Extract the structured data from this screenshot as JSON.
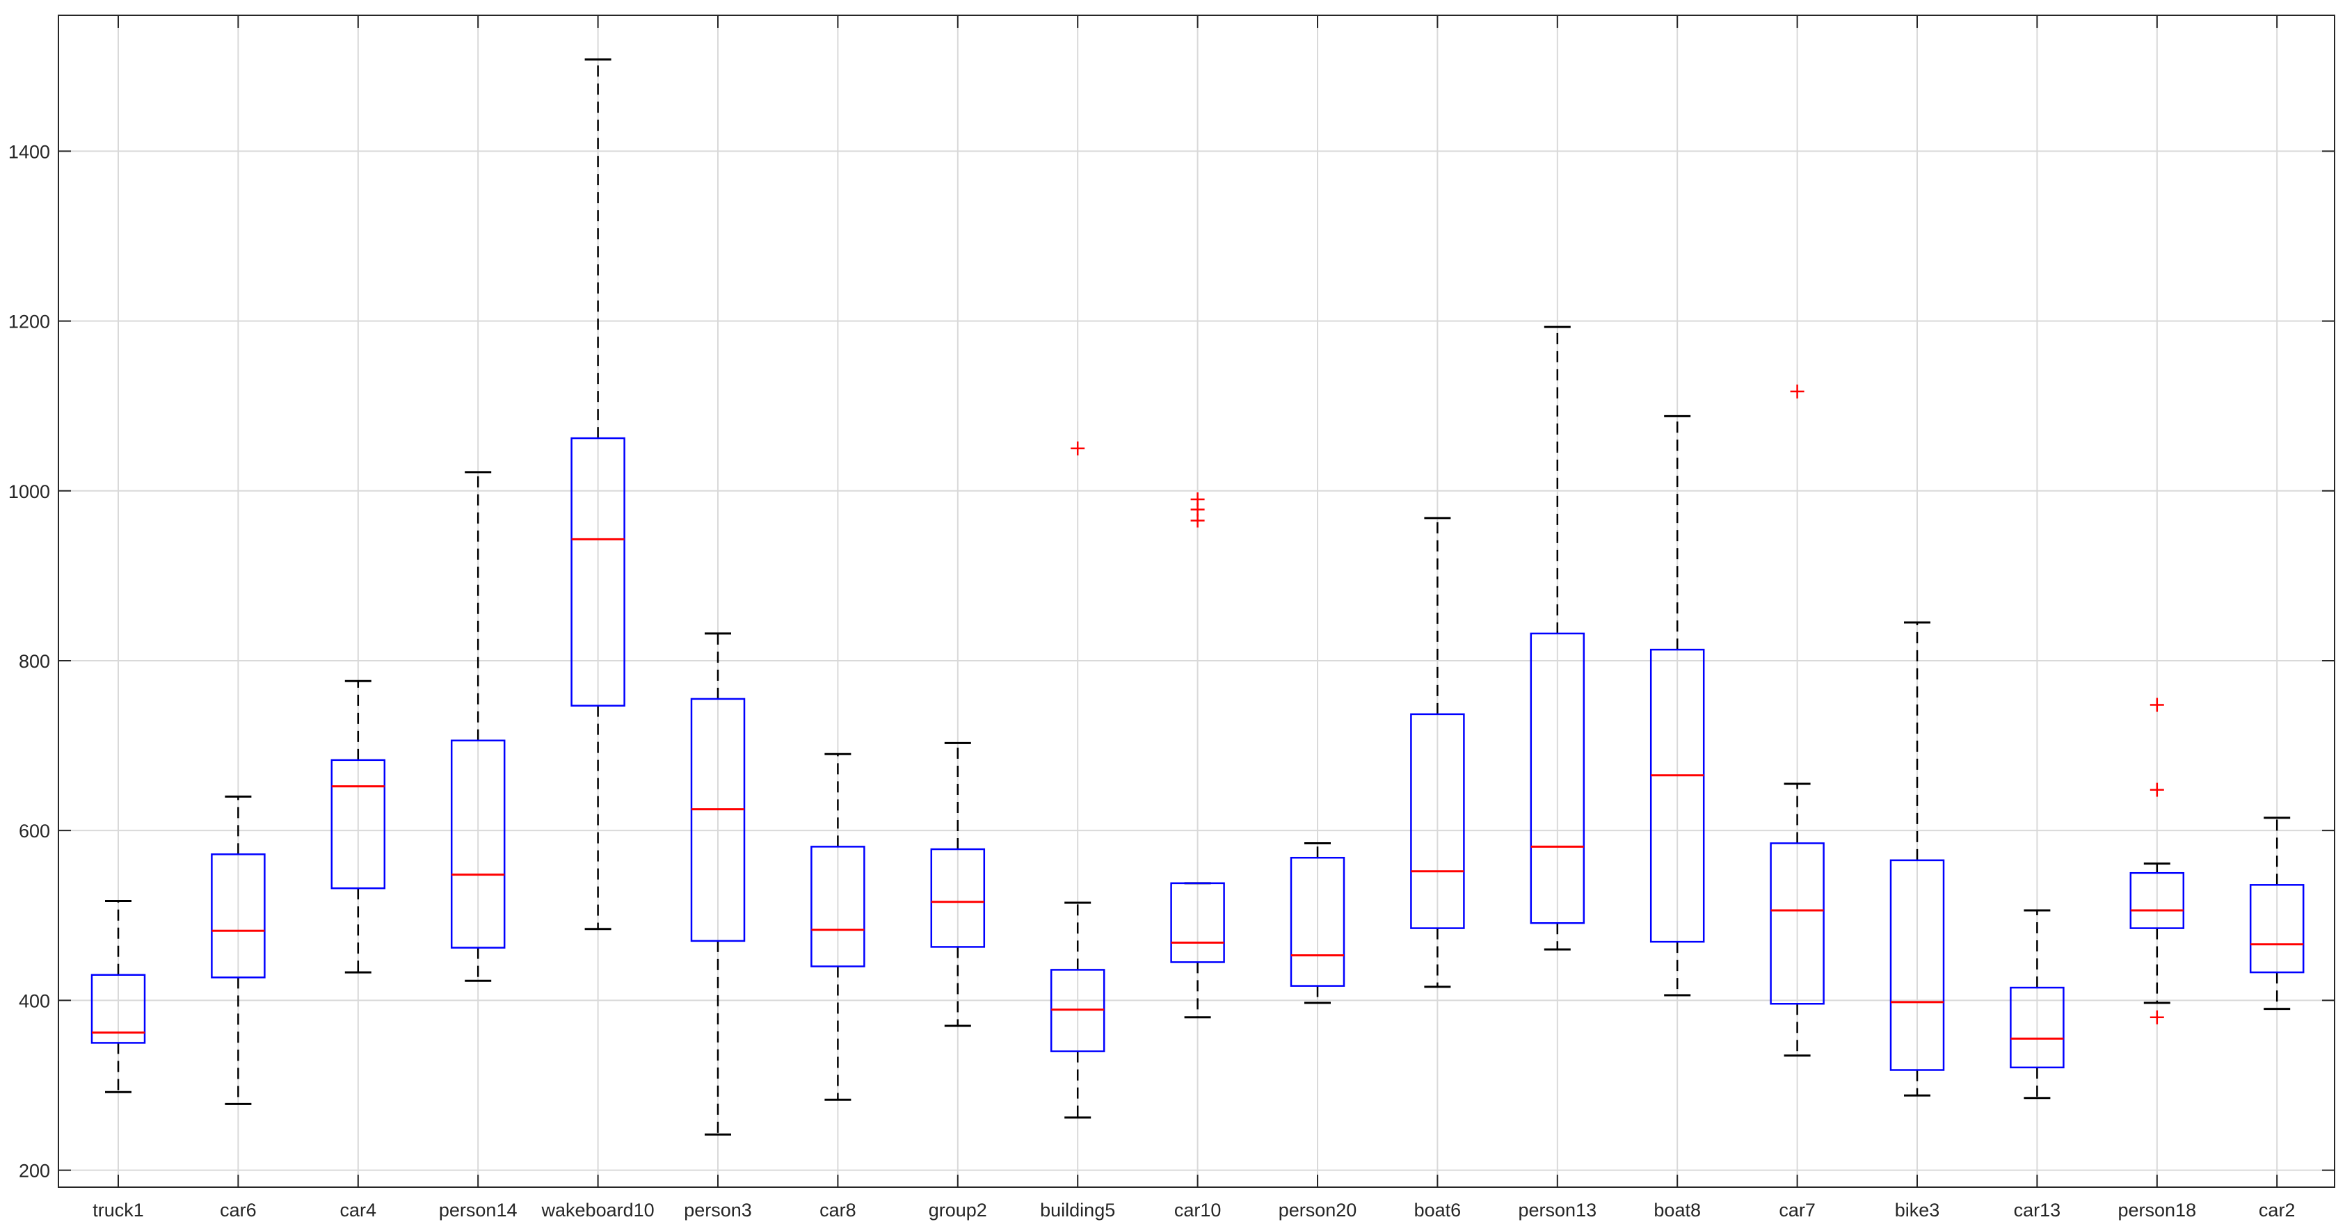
{
  "chart_data": {
    "type": "boxplot",
    "title": "",
    "xlabel": "",
    "ylabel": "",
    "ylim": [
      180,
      1560
    ],
    "yticks": [
      200,
      400,
      600,
      800,
      1000,
      1200,
      1400
    ],
    "ytick_labels": [
      "200",
      "400",
      "600",
      "800",
      "1000",
      "1200",
      "1400"
    ],
    "grid": true,
    "colors": {
      "box": "#0000ff",
      "median": "#ff0000",
      "whisker": "#000000",
      "outlier": "#ff0000",
      "grid": "#d9d9d9",
      "axis": "#262626"
    },
    "categories": [
      "truck1",
      "car6",
      "car4",
      "person14",
      "wakeboard10",
      "person3",
      "car8",
      "group2",
      "building5",
      "car10",
      "person20",
      "boat6",
      "person13",
      "boat8",
      "car7",
      "bike3",
      "car13",
      "person18",
      "car2"
    ],
    "boxes": [
      {
        "min": 292,
        "q1": 350,
        "median": 362,
        "q3": 430,
        "max": 517,
        "outliers": []
      },
      {
        "min": 278,
        "q1": 427,
        "median": 482,
        "q3": 572,
        "max": 640,
        "outliers": []
      },
      {
        "min": 433,
        "q1": 532,
        "median": 652,
        "q3": 683,
        "max": 776,
        "outliers": []
      },
      {
        "min": 423,
        "q1": 462,
        "median": 548,
        "q3": 706,
        "max": 1022,
        "outliers": []
      },
      {
        "min": 484,
        "q1": 747,
        "median": 943,
        "q3": 1062,
        "max": 1508,
        "outliers": []
      },
      {
        "min": 242,
        "q1": 470,
        "median": 625,
        "q3": 755,
        "max": 832,
        "outliers": []
      },
      {
        "min": 283,
        "q1": 440,
        "median": 483,
        "q3": 581,
        "max": 690,
        "outliers": []
      },
      {
        "min": 370,
        "q1": 463,
        "median": 516,
        "q3": 578,
        "max": 703,
        "outliers": []
      },
      {
        "min": 262,
        "q1": 340,
        "median": 389,
        "q3": 436,
        "max": 515,
        "outliers": [
          1050
        ]
      },
      {
        "min": 380,
        "q1": 445,
        "median": 468,
        "q3": 538,
        "max": 538,
        "outliers": [
          990,
          978,
          965
        ]
      },
      {
        "min": 397,
        "q1": 417,
        "median": 453,
        "q3": 568,
        "max": 585,
        "outliers": []
      },
      {
        "min": 416,
        "q1": 485,
        "median": 552,
        "q3": 737,
        "max": 968,
        "outliers": []
      },
      {
        "min": 460,
        "q1": 491,
        "median": 581,
        "q3": 832,
        "max": 1193,
        "outliers": []
      },
      {
        "min": 406,
        "q1": 469,
        "median": 665,
        "q3": 813,
        "max": 1088,
        "outliers": []
      },
      {
        "min": 335,
        "q1": 396,
        "median": 506,
        "q3": 585,
        "max": 655,
        "outliers": [
          1117
        ]
      },
      {
        "min": 288,
        "q1": 318,
        "median": 398,
        "q3": 565,
        "max": 845,
        "outliers": []
      },
      {
        "min": 285,
        "q1": 321,
        "median": 355,
        "q3": 415,
        "max": 506,
        "outliers": []
      },
      {
        "min": 397,
        "q1": 485,
        "median": 506,
        "q3": 550,
        "max": 561,
        "outliers": [
          748,
          648,
          380
        ]
      },
      {
        "min": 390,
        "q1": 433,
        "median": 466,
        "q3": 536,
        "max": 615,
        "outliers": []
      }
    ]
  }
}
